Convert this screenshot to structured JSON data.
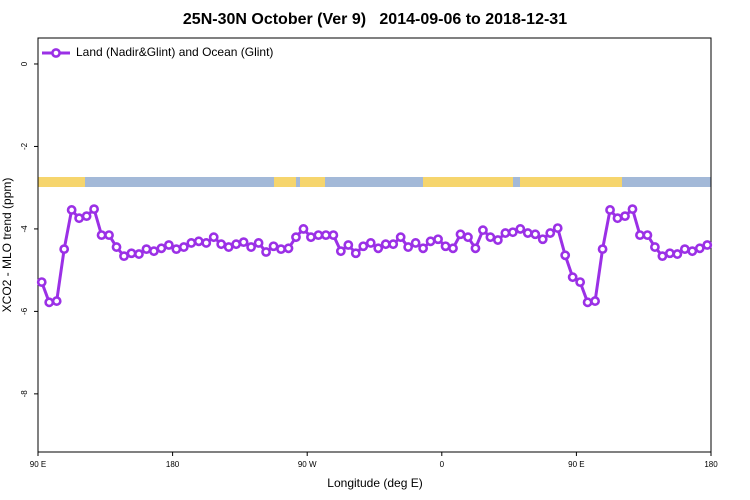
{
  "chart_data": {
    "type": "line",
    "title": "25N-30N October (Ver 9)   2014-09-06 to 2018-12-31",
    "x_label": "Longitude (deg E)",
    "y_label": "XCO2 - MLO trend (ppm)",
    "xlim": [
      90,
      540
    ],
    "ylim": [
      -9.41,
      0.63
    ],
    "xticks": [
      {
        "value": 90,
        "label": "90 E"
      },
      180,
      {
        "value": 270,
        "label": "90 W"
      },
      {
        "value": 360,
        "label": "0"
      },
      {
        "value": 450,
        "label": "90 E"
      },
      {
        "value": 540,
        "label": "180"
      }
    ],
    "yticks": [
      0,
      -2,
      -4,
      -6,
      -8
    ],
    "legend_position": "top-left",
    "x": [
      92.5,
      97.5,
      102.5,
      107.5,
      112.5,
      117.5,
      122.5,
      127.5,
      132.5,
      137.5,
      142.5,
      147.5,
      152.5,
      157.5,
      162.5,
      167.5,
      172.5,
      177.5,
      182.5,
      187.5,
      192.5,
      197.5,
      202.5,
      207.5,
      212.5,
      217.5,
      222.5,
      227.5,
      232.5,
      237.5,
      242.5,
      247.5,
      252.5,
      257.5,
      262.5,
      267.5,
      272.5,
      277.5,
      282.5,
      287.5,
      292.5,
      297.5,
      302.5,
      307.5,
      312.5,
      317.5,
      322.5,
      327.5,
      332.5,
      337.5,
      342.5,
      347.5,
      352.5,
      357.5,
      362.5,
      367.5,
      372.5,
      377.5,
      382.5,
      387.5,
      392.5,
      397.5,
      402.5,
      407.5,
      412.5,
      417.5,
      422.5,
      427.5,
      432.5,
      437.5,
      442.5,
      447.5,
      452.5,
      457.5,
      462.5,
      467.5,
      472.5,
      477.5,
      482.5,
      487.5,
      492.5,
      497.5,
      502.5,
      507.5,
      512.5,
      517.5,
      522.5,
      527.5,
      532.5,
      537.5
    ],
    "series": [
      {
        "name": "Land (Nadir&Glint) and Ocean (Glint)",
        "color": "#9b30e6",
        "values": [
          -5.29,
          -5.78,
          -5.75,
          -4.49,
          -3.54,
          -3.74,
          -3.69,
          -3.52,
          -4.15,
          -4.15,
          -4.44,
          -4.66,
          -4.59,
          -4.61,
          -4.49,
          -4.54,
          -4.47,
          -4.39,
          -4.49,
          -4.44,
          -4.34,
          -4.3,
          -4.34,
          -4.2,
          -4.37,
          -4.44,
          -4.37,
          -4.32,
          -4.44,
          -4.34,
          -4.56,
          -4.42,
          -4.49,
          -4.47,
          -4.2,
          -4.0,
          -4.2,
          -4.15,
          -4.15,
          -4.15,
          -4.54,
          -4.39,
          -4.59,
          -4.42,
          -4.34,
          -4.47,
          -4.37,
          -4.37,
          -4.2,
          -4.44,
          -4.34,
          -4.47,
          -4.3,
          -4.25,
          -4.42,
          -4.47,
          -4.13,
          -4.2,
          -4.47,
          -4.03,
          -4.2,
          -4.27,
          -4.1,
          -4.08,
          -4.0,
          -4.1,
          -4.13,
          -4.25,
          -4.1,
          -3.98,
          -4.64,
          -5.17,
          -5.29,
          -5.78,
          -5.75,
          -4.49,
          -3.54,
          -3.74,
          -3.69,
          -3.52,
          -4.15,
          -4.15,
          -4.44,
          -4.66,
          -4.59,
          -4.61,
          -4.49,
          -4.54,
          -4.47,
          -4.39
        ]
      }
    ]
  }
}
